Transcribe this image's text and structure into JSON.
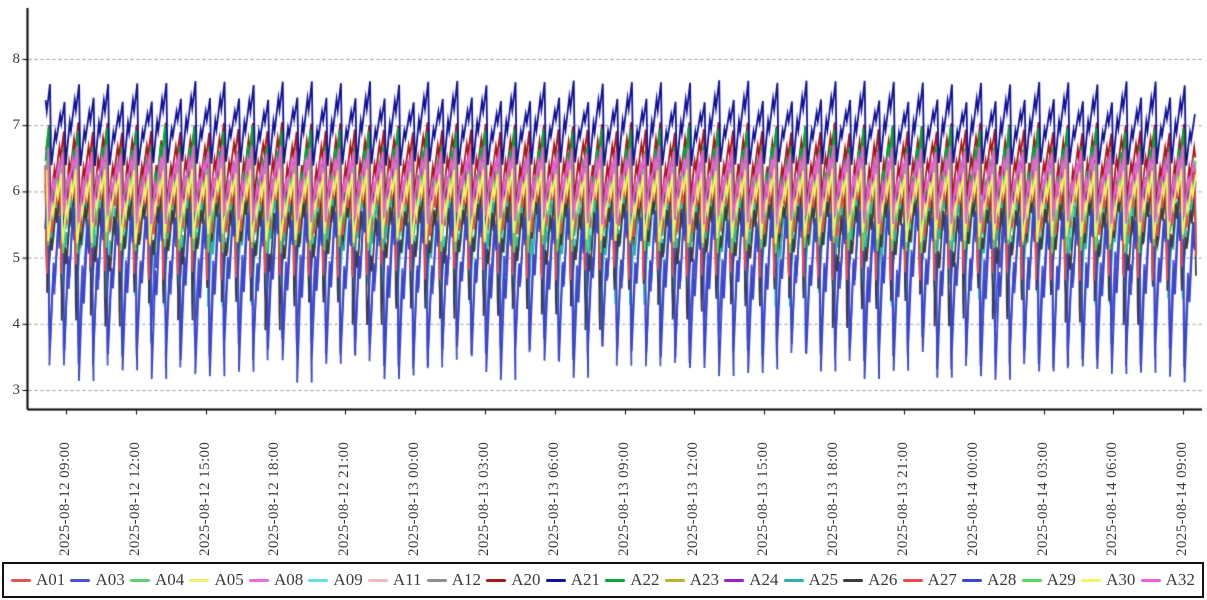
{
  "colors": {
    "background": "#ffffff",
    "axis": "#000000",
    "grid": "#999999",
    "text": "#3a3a3a",
    "legend_border": "#111111"
  },
  "chart_data": {
    "type": "line",
    "title": "",
    "xlabel": "",
    "ylabel": "",
    "grid": "horizontal-dashed",
    "legend_position": "bottom",
    "y_axis": {
      "min": 3,
      "max": 8,
      "tick_values": [
        3,
        4,
        5,
        6,
        7,
        8
      ]
    },
    "x_axis": {
      "tick_labels": [
        "2025-08-12 09:00",
        "2025-08-12 12:00",
        "2025-08-12 15:00",
        "2025-08-12 18:00",
        "2025-08-12 21:00",
        "2025-08-13 00:00",
        "2025-08-13 03:00",
        "2025-08-13 06:00",
        "2025-08-13 09:00",
        "2025-08-13 12:00",
        "2025-08-13 15:00",
        "2025-08-13 18:00",
        "2025-08-13 21:00",
        "2025-08-14 00:00",
        "2025-08-14 03:00",
        "2025-08-14 06:00",
        "2025-08-14 09:00"
      ],
      "tick_interval_hours": 3,
      "data_start_offset_hours": -0.9,
      "data_end_offset_hours": 48.55
    },
    "waveform": {
      "description": "repeating sawtooth: jagged rise then sharp drop, one cycle about every 37.5 minutes",
      "period_hours": 0.625,
      "rise_shape": [
        [
          0,
          0
        ],
        [
          0.26,
          0.52
        ],
        [
          0.34,
          0.4
        ],
        [
          0.6,
          0.8
        ],
        [
          0.68,
          0.66
        ],
        [
          0.9,
          1
        ],
        [
          0.97,
          0.12
        ],
        [
          1,
          0
        ]
      ]
    },
    "series": [
      {
        "name": "A01",
        "color": "#e05555",
        "min": 4.75,
        "max": 6.45,
        "phase": 0.32,
        "alt": 0.05,
        "dip_jitter": 0.35,
        "peak_jitter": 0.05
      },
      {
        "name": "A03",
        "color": "#4a52d4",
        "min": 3.3,
        "max": 6.3,
        "phase": 0.14,
        "alt": 0.06,
        "dip_jitter": 0.6,
        "peak_jitter": 0.04
      },
      {
        "name": "A04",
        "color": "#5ecf74",
        "min": 5.1,
        "max": 6.6,
        "phase": 0.24,
        "alt": 0.06,
        "dip_jitter": 0.25,
        "peak_jitter": 0.05
      },
      {
        "name": "A05",
        "color": "#f2f06a",
        "min": 5.2,
        "max": 6.35,
        "phase": 0.26,
        "alt": 0.05,
        "dip_jitter": 0.2,
        "peak_jitter": 0.04
      },
      {
        "name": "A08",
        "color": "#ea6ed9",
        "min": 5.5,
        "max": 6.75,
        "phase": 0.16,
        "alt": 0.06,
        "dip_jitter": 0.2,
        "peak_jitter": 0.05
      },
      {
        "name": "A09",
        "color": "#66e0e6",
        "min": 4.6,
        "max": 6.4,
        "phase": 0.29,
        "alt": 0.05,
        "dip_jitter": 0.35,
        "peak_jitter": 0.05
      },
      {
        "name": "A11",
        "color": "#f0bac2",
        "min": 5.35,
        "max": 6.4,
        "phase": 0.21,
        "alt": 0.05,
        "dip_jitter": 0.2,
        "peak_jitter": 0.04
      },
      {
        "name": "A12",
        "color": "#8e8e8e",
        "min": 5.15,
        "max": 6.3,
        "phase": 0.27,
        "alt": 0.05,
        "dip_jitter": 0.2,
        "peak_jitter": 0.04
      },
      {
        "name": "A20",
        "color": "#aa1717",
        "min": 5.7,
        "max": 7.05,
        "phase": 0.05,
        "alt": 0.08,
        "dip_jitter": 0.25,
        "peak_jitter": 0.05
      },
      {
        "name": "A21",
        "color": "#11119b",
        "min": 6.38,
        "max": 7.68,
        "phase": 0.0,
        "alt": 0.2,
        "dip_jitter": 0.1,
        "peak_jitter": 0.06
      },
      {
        "name": "A22",
        "color": "#00a838",
        "min": 5.3,
        "max": 7.0,
        "phase": 0.09,
        "alt": 0.18,
        "dip_jitter": 0.3,
        "peak_jitter": 0.06
      },
      {
        "name": "A23",
        "color": "#b9b329",
        "min": 5.2,
        "max": 6.4,
        "phase": 0.25,
        "alt": 0.05,
        "dip_jitter": 0.2,
        "peak_jitter": 0.04
      },
      {
        "name": "A24",
        "color": "#9a20c8",
        "min": 5.4,
        "max": 6.5,
        "phase": 0.18,
        "alt": 0.05,
        "dip_jitter": 0.2,
        "peak_jitter": 0.04
      },
      {
        "name": "A25",
        "color": "#2ab3ab",
        "min": 4.25,
        "max": 6.3,
        "phase": 0.24,
        "alt": 0.05,
        "dip_jitter": 0.4,
        "peak_jitter": 0.05
      },
      {
        "name": "A26",
        "color": "#3d3d3d",
        "min": 3.9,
        "max": 6.2,
        "phase": 0.3,
        "alt": 0.05,
        "dip_jitter": 0.9,
        "peak_jitter": 0.04
      },
      {
        "name": "A27",
        "color": "#f04848",
        "min": 4.65,
        "max": 6.45,
        "phase": 0.31,
        "alt": 0.05,
        "dip_jitter": 0.3,
        "peak_jitter": 0.05
      },
      {
        "name": "A28",
        "color": "#3a46cc",
        "min": 3.1,
        "max": 6.35,
        "phase": 0.11,
        "alt": 0.06,
        "dip_jitter": 0.65,
        "peak_jitter": 0.04
      },
      {
        "name": "A29",
        "color": "#5cd65c",
        "min": 5.05,
        "max": 6.5,
        "phase": 0.22,
        "alt": 0.06,
        "dip_jitter": 0.25,
        "peak_jitter": 0.05
      },
      {
        "name": "A30",
        "color": "#f4f462",
        "min": 5.2,
        "max": 6.35,
        "phase": 0.23,
        "alt": 0.05,
        "dip_jitter": 0.2,
        "peak_jitter": 0.04
      },
      {
        "name": "A32",
        "color": "#ee5fd8",
        "min": 5.5,
        "max": 6.7,
        "phase": 0.13,
        "alt": 0.06,
        "dip_jitter": 0.2,
        "peak_jitter": 0.05
      }
    ]
  }
}
